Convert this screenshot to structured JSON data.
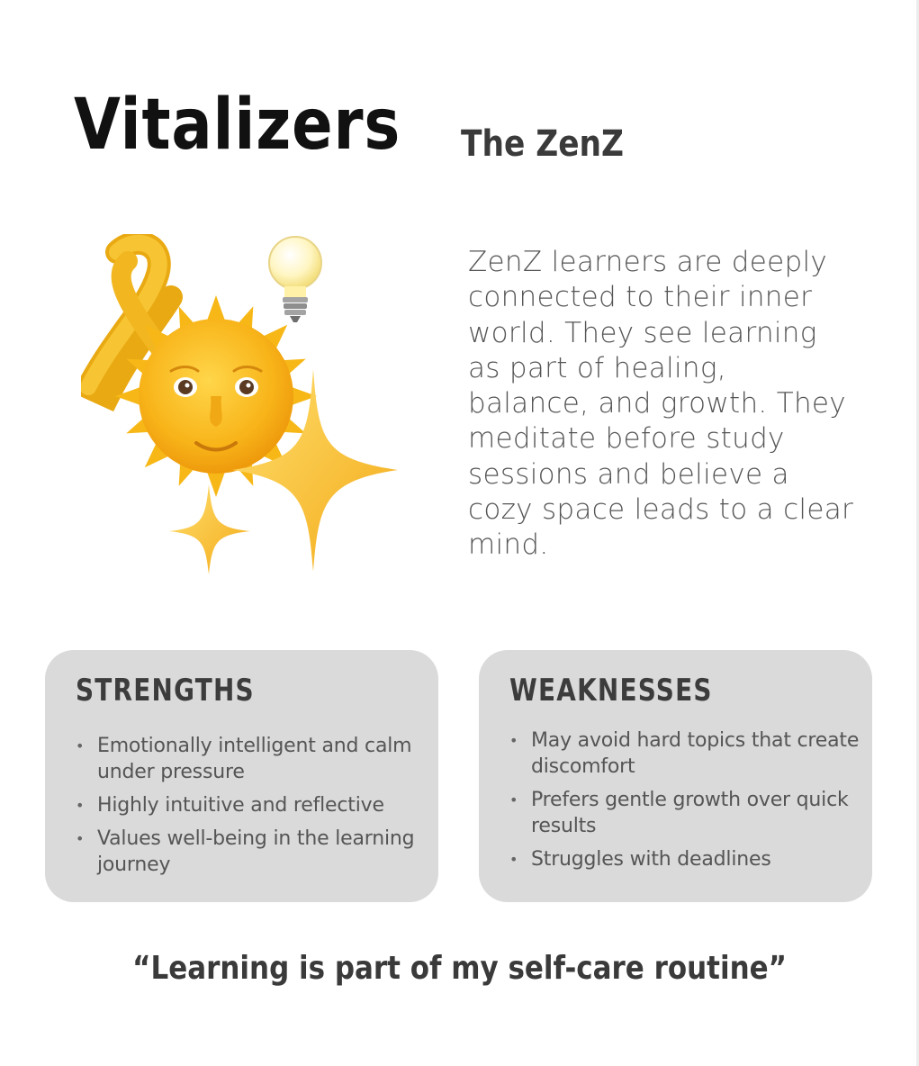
{
  "title": "Vitalizers",
  "subtitle": "The ZenZ",
  "description": "ZenZ learners are deeply connected to their inner world. They see learning as part of healing, balance, and growth. They meditate before study sessions and believe a cozy space leads to a clear mind.",
  "illustration": {
    "icons": [
      "awareness-ribbon-icon",
      "sun-with-face-icon",
      "lightbulb-icon",
      "sparkles-icon"
    ],
    "colors": {
      "sun": "#f6b51a",
      "ribbon": "#f0b81c",
      "sparkle": "#f7c232",
      "bulb": "#fff3b0"
    }
  },
  "strengths": {
    "title": "STRENGTHS",
    "items": [
      "Emotionally intelligent and calm under pressure",
      "Highly intuitive and reflective",
      "Values well-being in the learning journey"
    ]
  },
  "weaknesses": {
    "title": "WEAKNESSES",
    "items": [
      "May avoid hard topics that create discomfort",
      "Prefers gentle growth over quick results",
      "Struggles with deadlines"
    ]
  },
  "quote": "“Learning is part of my self-care routine”",
  "colors": {
    "card_bg": "#dadada",
    "text_dark": "#111111",
    "text_muted": "#555555"
  }
}
